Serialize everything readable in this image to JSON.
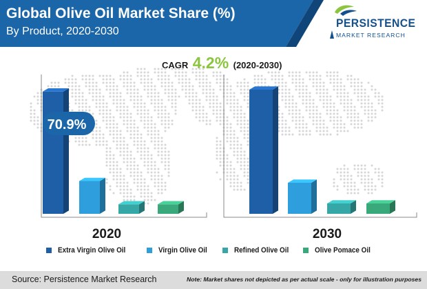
{
  "header": {
    "title": "Global Olive Oil Market Share (%)",
    "subtitle": "By Product, 2020-2030"
  },
  "logo": {
    "word": "PERSISTENCE",
    "sub": "MARKET RESEARCH"
  },
  "cagr": {
    "label": "CAGR",
    "value": "4.2%",
    "period": "(2020-2030)"
  },
  "footer": {
    "source": "Source: Persistence Market Research",
    "note": "Note: Market shares not depicted as per actual scale - only for illustration purposes"
  },
  "colors": {
    "banner": "#1b65a9",
    "banner_dark": "#0f4578",
    "accent_green": "#8bc53f",
    "footer": "#dcdcdc"
  },
  "chart_data": {
    "type": "bar",
    "title": "Global Olive Oil Market Share (%)",
    "subtitle": "By Product, 2020-2030",
    "panels": [
      {
        "label": "2020",
        "values": [
          70.9,
          19,
          5.5,
          5.5
        ],
        "callout": "70.9%"
      },
      {
        "label": "2030",
        "values": [
          72,
          18,
          6,
          6
        ]
      }
    ],
    "ylim": [
      0,
      100
    ],
    "series": [
      {
        "name": "Extra Virgin Olive Oil",
        "color": "#1f5fa8"
      },
      {
        "name": "Virgin Olive Oil",
        "color": "#2e9fdc"
      },
      {
        "name": "Refined Olive Oil",
        "color": "#34a7a6"
      },
      {
        "name": "Olive Pomace Oil",
        "color": "#39a87a"
      }
    ],
    "grid": false,
    "legend": "bottom",
    "note_scale": "not to actual scale"
  }
}
